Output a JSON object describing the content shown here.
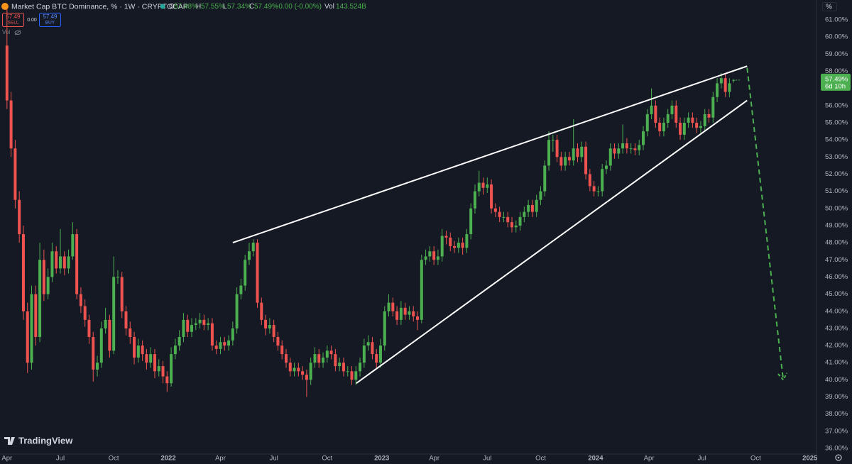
{
  "ui": {
    "title": "Market Cap BTC Dominance, % · 1W · CRYPTOCAP",
    "o_label": "O",
    "o": "57.48%",
    "h_label": "H",
    "h": "57.55%",
    "l_label": "L",
    "l": "57.34%",
    "c_label": "C",
    "c": "57.49%",
    "change": "-0.00 (-0.00%)",
    "vol_label": "Vol",
    "vol": "143.524B",
    "sell_price": "57.49",
    "sell": "SELL",
    "spread": "0.00",
    "buy_price": "57.49",
    "buy": "BUY",
    "volume_toggle": "Vol",
    "price_label": "57.49%",
    "countdown": "6d 10h",
    "axis_unit": "%",
    "brand": "TradingView"
  },
  "chart_data": {
    "type": "candlestick",
    "up_color": "#4caf50",
    "down_color": "#ef5350",
    "grid": false,
    "xlim": [
      -1.7,
      197.2
    ],
    "xticks": [
      {
        "value": 0,
        "label": "Apr"
      },
      {
        "value": 13,
        "label": "Jul"
      },
      {
        "value": 26,
        "label": "Oct"
      },
      {
        "value": 39.3,
        "label": "2022"
      },
      {
        "value": 52,
        "label": "Apr"
      },
      {
        "value": 65,
        "label": "Jul"
      },
      {
        "value": 78,
        "label": "Oct"
      },
      {
        "value": 91.3,
        "label": "2023"
      },
      {
        "value": 104.1,
        "label": "Apr"
      },
      {
        "value": 117,
        "label": "Jul"
      },
      {
        "value": 130,
        "label": "Oct"
      },
      {
        "value": 143.4,
        "label": "2024"
      },
      {
        "value": 156.4,
        "label": "Apr"
      },
      {
        "value": 169.3,
        "label": "Jul"
      },
      {
        "value": 182.4,
        "label": "Oct"
      },
      {
        "value": 195.6,
        "label": "2025"
      }
    ],
    "ylim": [
      35.67,
      62.16
    ],
    "yticks": [
      {
        "value": 36,
        "label": "36.00%"
      },
      {
        "value": 37,
        "label": "37.00%"
      },
      {
        "value": 38,
        "label": "38.00%"
      },
      {
        "value": 39,
        "label": "39.00%"
      },
      {
        "value": 40,
        "label": "40.00%"
      },
      {
        "value": 41,
        "label": "41.00%"
      },
      {
        "value": 42,
        "label": "42.00%"
      },
      {
        "value": 43,
        "label": "43.00%"
      },
      {
        "value": 44,
        "label": "44.00%"
      },
      {
        "value": 45,
        "label": "45.00%"
      },
      {
        "value": 46,
        "label": "46.00%"
      },
      {
        "value": 47,
        "label": "47.00%"
      },
      {
        "value": 48,
        "label": "48.00%"
      },
      {
        "value": 49,
        "label": "49.00%"
      },
      {
        "value": 50,
        "label": "50.00%"
      },
      {
        "value": 51,
        "label": "51.00%"
      },
      {
        "value": 52,
        "label": "52.00%"
      },
      {
        "value": 53,
        "label": "53.00%"
      },
      {
        "value": 54,
        "label": "54.00%"
      },
      {
        "value": 55,
        "label": "55.00%"
      },
      {
        "value": 56,
        "label": "56.00%"
      },
      {
        "value": 57,
        "label": "57.00%"
      },
      {
        "value": 58,
        "label": "58.00%"
      },
      {
        "value": 59,
        "label": "59.00%"
      },
      {
        "value": 60,
        "label": "60.00%"
      },
      {
        "value": 61,
        "label": "61.00%"
      }
    ],
    "last_price": 57.49,
    "open": [
      59.5,
      56.3,
      53.5,
      50.5,
      48.5,
      44,
      41,
      45,
      42.5,
      47,
      45,
      46,
      47.5,
      46.5,
      47.2,
      46.5,
      47.2,
      48.5,
      45,
      44.3,
      43.5,
      42.5,
      40.6,
      41,
      43,
      43.5,
      41.7,
      46,
      46,
      44,
      43,
      42.5,
      41.3,
      42,
      41.5,
      41,
      41.5,
      40.5,
      40.8,
      40.2,
      39.8,
      41.5,
      42,
      42.5,
      43.5,
      42.8,
      43.2,
      43.3,
      43.5,
      43.2,
      43.3,
      42,
      41.8,
      42.2,
      42,
      42.3,
      43,
      45,
      45.5,
      47,
      47.5,
      48,
      44.5,
      43.5,
      43,
      43.2,
      42.5,
      42,
      41.5,
      41,
      40.5,
      40.7,
      40.5,
      40.3,
      40,
      41,
      41.5,
      41,
      41.3,
      41.7,
      41.5,
      40.8,
      41,
      40.5,
      40.5,
      40,
      40.5,
      41,
      42,
      42.2,
      41.5,
      41,
      42,
      44,
      44.5,
      44,
      43.5,
      44.2,
      43.8,
      44,
      43.7,
      43.5,
      47,
      47.2,
      47.5,
      47,
      47.2,
      48.4,
      48.3,
      47.8,
      47.7,
      48,
      47.7,
      48.5,
      50,
      51,
      51.5,
      51.2,
      51.4,
      50,
      49.8,
      49.5,
      49.5,
      49.2,
      48.9,
      49,
      49.5,
      49.8,
      50.2,
      49.8,
      50.5,
      51,
      52.5,
      54,
      54,
      53,
      52.5,
      53,
      52.8,
      53.5,
      53,
      53.6,
      52,
      51.3,
      51,
      51,
      52.3,
      52.5,
      53.5,
      53.2,
      53.5,
      53.8,
      53.5,
      53.5,
      53.4,
      53.7,
      54.5,
      55.5,
      56,
      55,
      54.5,
      55,
      55.5,
      56,
      55,
      54.3,
      55,
      55.3,
      55,
      54.7,
      54.8,
      55.5,
      55.3,
      56.5,
      57.3,
      57.6,
      56.8,
      57.48
    ],
    "high": [
      61.8,
      56.8,
      54,
      51,
      49,
      44.5,
      45.5,
      45.5,
      48,
      47.6,
      46.5,
      48,
      47.8,
      48.8,
      47.5,
      47.6,
      49.2,
      48.8,
      45.4,
      44.7,
      43.8,
      42.8,
      41.4,
      43.4,
      44.2,
      43.8,
      47.2,
      46.4,
      46.3,
      44.3,
      43.4,
      42.8,
      42.4,
      42.3,
      41.8,
      41.9,
      41.8,
      41.2,
      41.1,
      40.5,
      41.9,
      42.4,
      42.9,
      43.9,
      43.8,
      43.6,
      43.6,
      43.9,
      43.8,
      43.6,
      43.6,
      42.3,
      42.5,
      42.5,
      42.6,
      43.4,
      45.4,
      45.9,
      47.3,
      48,
      48.2,
      48.2,
      44.8,
      43.8,
      43.6,
      43.5,
      42.8,
      42.3,
      41.8,
      41.3,
      41,
      41,
      40.8,
      40.6,
      41.3,
      41.9,
      41.8,
      41.6,
      42,
      42,
      41.8,
      41.3,
      41.3,
      40.8,
      40.8,
      40.8,
      41.3,
      42.4,
      42.6,
      42.5,
      41.8,
      42.4,
      44.3,
      45,
      44.8,
      44.3,
      44.6,
      44.5,
      44.3,
      44.3,
      44,
      47.3,
      47.6,
      47.8,
      47.8,
      47.6,
      48.8,
      48.7,
      48.6,
      48.1,
      48.3,
      48.3,
      48.8,
      50.3,
      51.4,
      52.2,
      51.8,
      51.8,
      51.7,
      50.3,
      50.1,
      49.8,
      49.8,
      49.5,
      49.3,
      49.8,
      50.1,
      50.5,
      50.5,
      50.8,
      51.3,
      52.8,
      54.5,
      54.3,
      54.3,
      53.3,
      53.3,
      53.3,
      55.2,
      53.8,
      53.9,
      53.9,
      52.3,
      51.6,
      51.3,
      52.6,
      52.8,
      53.8,
      53.8,
      53.8,
      54.9,
      54.1,
      53.8,
      53.8,
      54,
      54.8,
      55.8,
      57,
      56.3,
      55.3,
      55.3,
      55.8,
      56.3,
      56.3,
      55.3,
      55.3,
      55.6,
      55.6,
      55.3,
      55.1,
      55.8,
      55.8,
      56.8,
      57.6,
      57.9,
      57.9,
      57.6,
      57.55
    ],
    "low": [
      55.8,
      53,
      50,
      48,
      43.5,
      40.4,
      40.6,
      42,
      42.2,
      44.6,
      44.7,
      45.7,
      46.2,
      46.2,
      46.1,
      46.2,
      47,
      44.7,
      43.9,
      43.1,
      42.1,
      39.9,
      40.2,
      40.7,
      42.7,
      41.3,
      41.5,
      45.6,
      43.6,
      42.6,
      42.1,
      40.9,
      41,
      41.1,
      40.6,
      40.7,
      40.1,
      40.2,
      39.8,
      39.3,
      39.6,
      41.2,
      41.7,
      42.2,
      42.5,
      42.5,
      42.9,
      43,
      42.9,
      42.9,
      41.7,
      41.5,
      41.5,
      41.7,
      41.7,
      42,
      42.7,
      44.7,
      45.2,
      46.7,
      47.2,
      44.2,
      43.2,
      42.6,
      42.7,
      42.2,
      41.7,
      41.2,
      40.7,
      40.2,
      40.2,
      40.2,
      40,
      39,
      39.7,
      40.7,
      40.7,
      40.7,
      41,
      41.2,
      40.5,
      40.5,
      40.2,
      40.2,
      39.7,
      39.7,
      40.2,
      40.7,
      41.7,
      41.2,
      40.7,
      40.7,
      41.7,
      43.7,
      43.7,
      43.2,
      43.2,
      43.5,
      43.5,
      43.4,
      42.9,
      43.3,
      46.7,
      46.9,
      46.7,
      46.7,
      46.9,
      47.9,
      47.5,
      47.4,
      47.4,
      47.3,
      47.4,
      48.2,
      49.7,
      50.7,
      50.8,
      50.9,
      49.7,
      49.5,
      49.2,
      49.2,
      48.9,
      48.6,
      48.6,
      48.7,
      49.2,
      49.5,
      49.5,
      49.5,
      50.2,
      50.7,
      52.2,
      53.3,
      52.7,
      52.2,
      52.2,
      52.5,
      52.5,
      52.7,
      52.7,
      51.7,
      51,
      50.7,
      50.7,
      50.7,
      52,
      52.2,
      52.9,
      52.9,
      53.2,
      53.2,
      53.2,
      53.1,
      53.1,
      53.4,
      54.2,
      55.2,
      54.7,
      54.2,
      54.2,
      54.7,
      55.2,
      54.7,
      54,
      54,
      54.7,
      54.7,
      54.4,
      54.4,
      54.5,
      55,
      55,
      56.2,
      57,
      56.5,
      56.5,
      57.34
    ],
    "close": [
      56.3,
      53.5,
      50.5,
      48.5,
      44,
      41,
      45,
      42.5,
      47,
      45,
      46,
      47.5,
      46.5,
      47.2,
      46.5,
      47.2,
      48.5,
      45,
      44.3,
      43.5,
      42.5,
      40.6,
      41,
      43,
      43.5,
      41.7,
      46,
      46,
      44,
      43,
      42.5,
      41.3,
      42,
      41.5,
      41,
      41.5,
      40.5,
      40.8,
      40.2,
      39.8,
      41.5,
      42,
      42.5,
      43.5,
      42.8,
      43.2,
      43.3,
      43.5,
      43.2,
      43.3,
      42,
      41.8,
      42.2,
      42,
      42.3,
      43,
      45,
      45.5,
      47,
      47.5,
      48,
      44.5,
      43.5,
      43,
      43.2,
      42.5,
      42,
      41.5,
      41,
      40.5,
      40.7,
      40.5,
      40.3,
      40,
      41,
      41.5,
      41,
      41.3,
      41.7,
      41.5,
      40.8,
      41,
      40.5,
      40.5,
      40,
      40.5,
      41,
      42,
      42.2,
      41.5,
      41,
      42,
      44,
      44.5,
      44,
      43.5,
      44.2,
      43.8,
      44,
      43.7,
      43.5,
      47,
      47.2,
      47.5,
      47,
      47.2,
      48.4,
      48.3,
      47.8,
      47.7,
      48,
      47.7,
      48.5,
      50,
      51,
      51.5,
      51.2,
      51.4,
      50,
      49.8,
      49.5,
      49.5,
      49.2,
      48.9,
      49,
      49.5,
      49.8,
      50.2,
      49.8,
      50.5,
      51,
      52.5,
      54,
      54,
      53,
      52.5,
      53,
      52.8,
      53.5,
      53,
      53.6,
      52,
      51.3,
      51,
      51,
      52.3,
      52.5,
      53.5,
      53.2,
      53.5,
      53.8,
      53.5,
      53.5,
      53.4,
      53.7,
      54.5,
      55.5,
      56,
      55,
      54.5,
      55,
      55.5,
      56,
      55,
      54.3,
      55,
      55.3,
      55,
      54.7,
      54.8,
      55.5,
      55.3,
      56.5,
      57.3,
      57.6,
      56.8,
      57.3,
      57.49
    ],
    "trendlines": [
      {
        "x": [
          55,
          180.3
        ],
        "y": [
          48.0,
          58.3
        ],
        "color": "#ffffff"
      },
      {
        "x": [
          85.1,
          180.3
        ],
        "y": [
          39.8,
          56.3
        ],
        "color": "#ffffff"
      }
    ],
    "projection": {
      "x": [
        180.3,
        189.1
      ],
      "y": [
        58.2,
        40.0
      ],
      "color": "#4caf50"
    }
  }
}
